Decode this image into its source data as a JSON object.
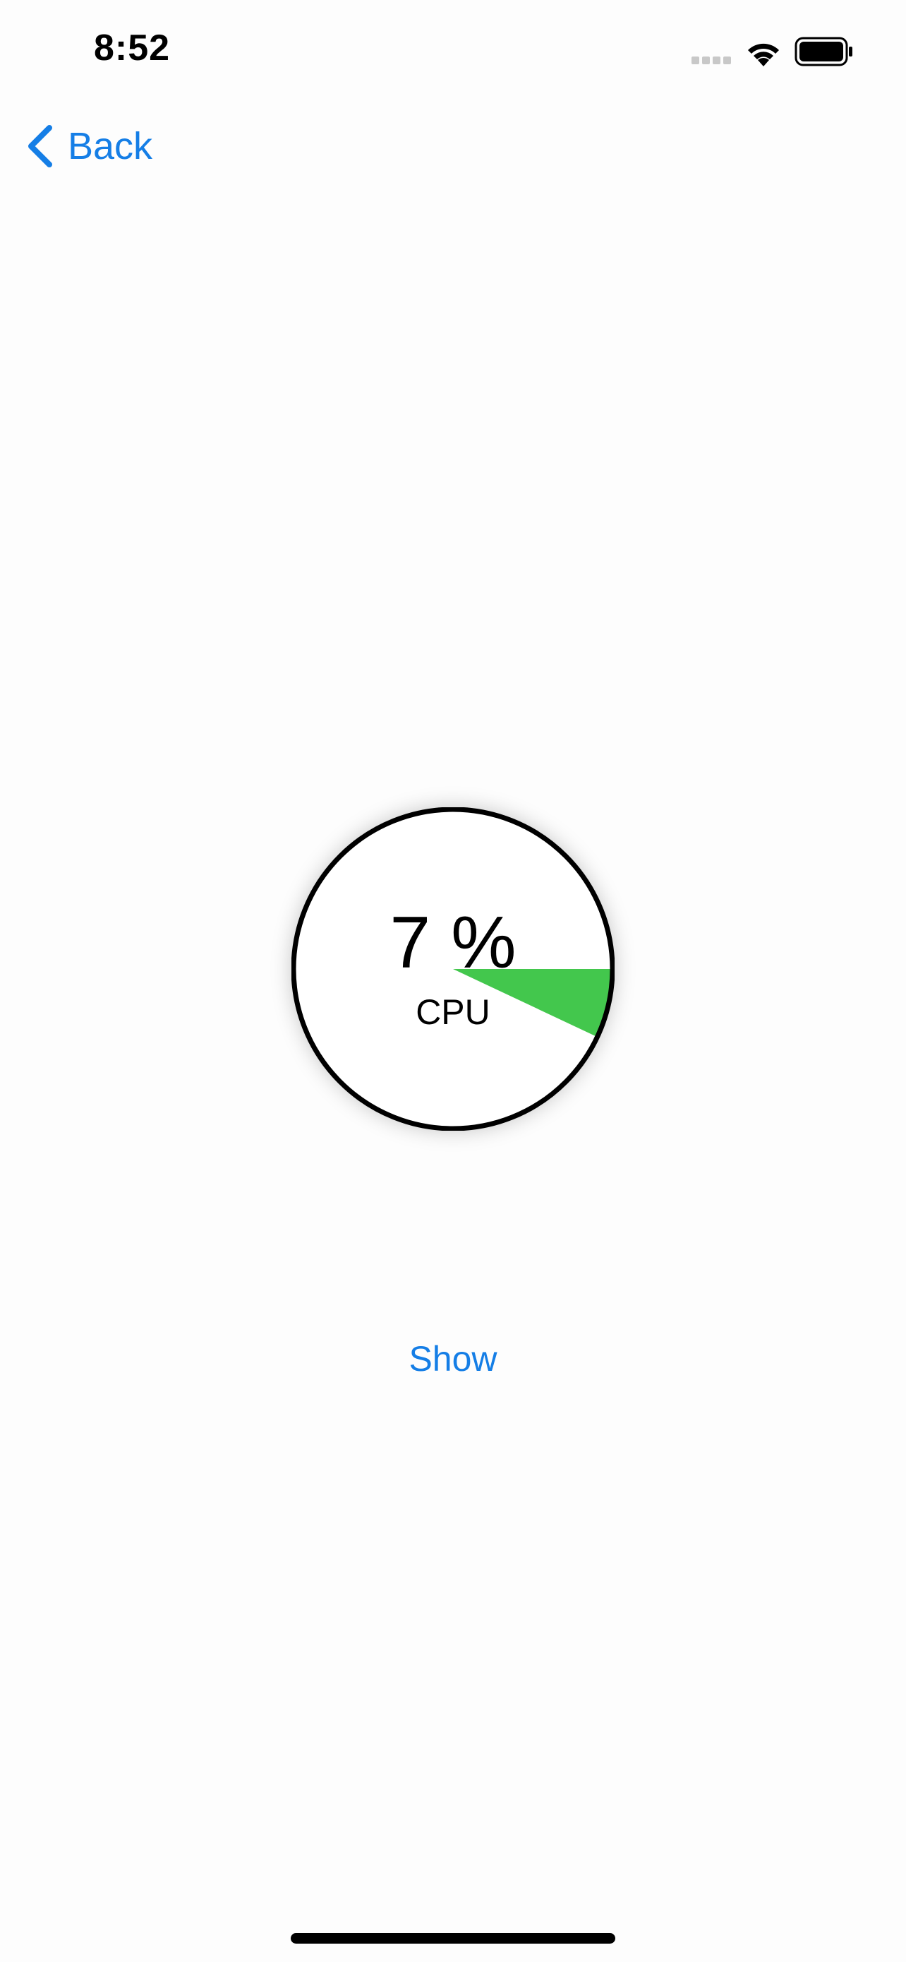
{
  "status_bar": {
    "time": "8:52"
  },
  "nav": {
    "back_label": "Back"
  },
  "gauge": {
    "value_text": "7 %",
    "label": "CPU",
    "percent": 7,
    "fill_color": "#43c74d",
    "ring_color": "#000000"
  },
  "actions": {
    "show_label": "Show"
  },
  "colors": {
    "accent": "#157ee6"
  }
}
